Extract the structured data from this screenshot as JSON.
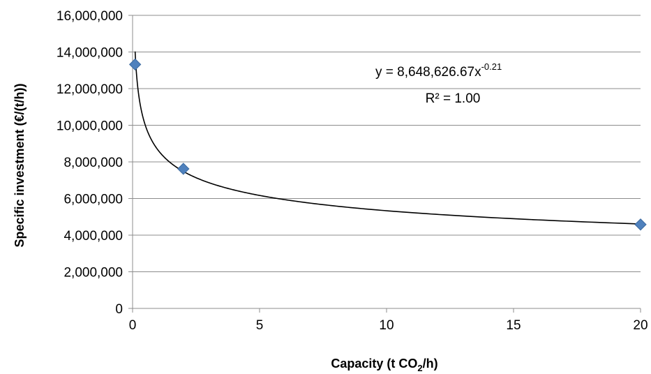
{
  "chart_data": {
    "type": "scatter",
    "xlabel_main": "Capacity (t CO",
    "xlabel_sub": "2",
    "xlabel_end": "/h)",
    "ylabel": "Specific investment (€/(t/h))",
    "xlim": [
      0,
      20
    ],
    "ylim": [
      0,
      16000000
    ],
    "x_ticks": [
      0,
      5,
      10,
      15,
      20
    ],
    "y_ticks": [
      0,
      2000000,
      4000000,
      6000000,
      8000000,
      10000000,
      12000000,
      14000000,
      16000000
    ],
    "x_tick_labels": [
      "0",
      "5",
      "10",
      "15",
      "20"
    ],
    "y_tick_labels": [
      "0",
      "2,000,000",
      "4,000,000",
      "6,000,000",
      "8,000,000",
      "10,000,000",
      "12,000,000",
      "14,000,000",
      "16,000,000"
    ],
    "grid": "horizontal",
    "series": [
      {
        "points": [
          {
            "x": 0.1,
            "y": 13320000
          },
          {
            "x": 2,
            "y": 7620000
          },
          {
            "x": 20,
            "y": 4580000
          }
        ],
        "marker": "diamond",
        "color": "#4F81BD"
      }
    ],
    "trendline": {
      "type": "power",
      "coefficient": 8648626.67,
      "exponent": -0.21,
      "x_range": [
        0.1,
        20
      ],
      "color": "#000000"
    },
    "annotation": {
      "equation_prefix": "y = 8,648,626.67x",
      "equation_exponent": "-0.21",
      "r_squared": "R² = 1.00"
    }
  }
}
